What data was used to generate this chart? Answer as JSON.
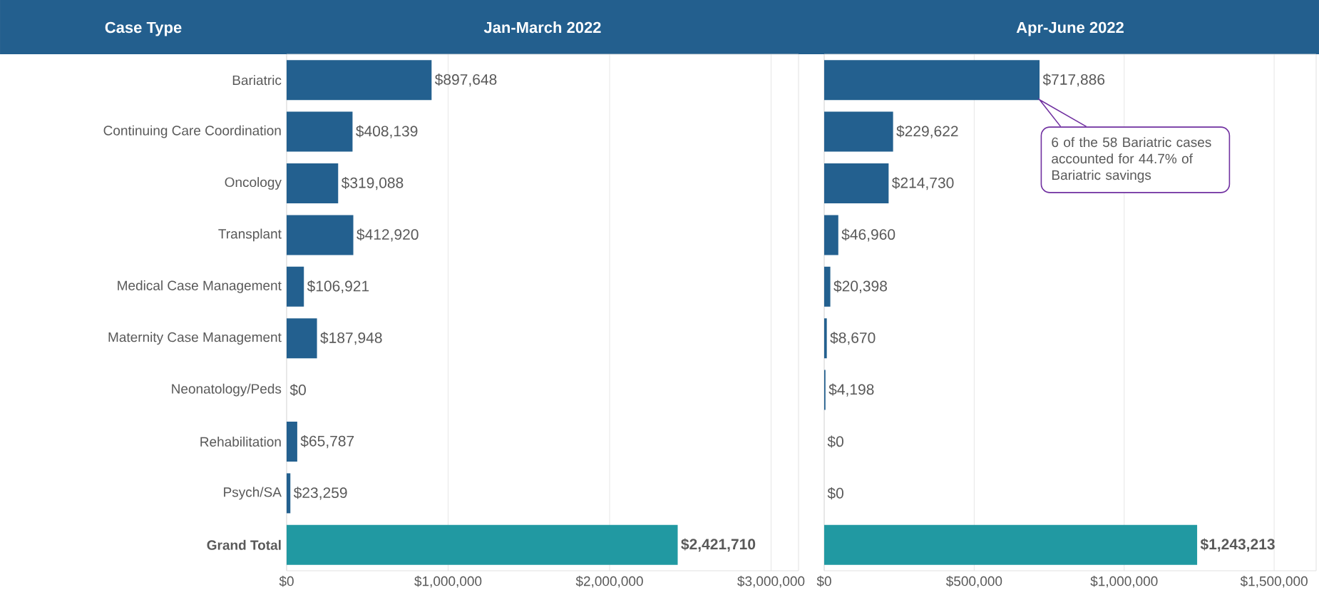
{
  "chart_data": [
    {
      "type": "bar",
      "orientation": "horizontal",
      "title": "Jan-March 2022",
      "ylabel": "Case Type",
      "categories": [
        "Bariatric",
        "Continuing Care Coordination",
        "Oncology",
        "Transplant",
        "Medical Case Management",
        "Maternity Case Management",
        "Neonatology/Peds",
        "Rehabilitation",
        "Psych/SA",
        "Grand Total"
      ],
      "values": [
        897648,
        408139,
        319088,
        412920,
        106921,
        187948,
        0,
        65787,
        23259,
        2421710
      ],
      "value_labels": [
        "$897,648",
        "$408,139",
        "$319,088",
        "$412,920",
        "$106,921",
        "$187,948",
        "$0",
        "$65,787",
        "$23,259",
        "$2,421,710"
      ],
      "colors": [
        "#23608f",
        "#23608f",
        "#23608f",
        "#23608f",
        "#23608f",
        "#23608f",
        "#23608f",
        "#23608f",
        "#23608f",
        "#2199a2"
      ],
      "xlim": [
        0,
        3170000
      ],
      "xticks": [
        {
          "value": 0,
          "label": "$0"
        },
        {
          "value": 1000000,
          "label": "$1,000,000"
        },
        {
          "value": 2000000,
          "label": "$2,000,000"
        },
        {
          "value": 3000000,
          "label": "$3,000,000"
        }
      ],
      "grid": "x"
    },
    {
      "type": "bar",
      "orientation": "horizontal",
      "title": "Apr-June 2022",
      "categories": [
        null,
        null,
        null,
        null,
        null,
        null,
        null,
        null,
        null,
        null
      ],
      "values": [
        717886,
        229622,
        214730,
        46960,
        20398,
        8670,
        4198,
        0,
        0,
        1243213
      ],
      "value_labels": [
        "$717,886",
        "$229,622",
        "$214,730",
        "$46,960",
        "$20,398",
        "$8,670",
        "$4,198",
        "$0",
        "$0",
        "$1,243,213"
      ],
      "colors": [
        "#23608f",
        "#23608f",
        "#23608f",
        "#23608f",
        "#23608f",
        "#23608f",
        "#23608f",
        "#23608f",
        "#23608f",
        "#2199a2"
      ],
      "xlim": [
        0,
        1640000
      ],
      "xticks": [
        {
          "value": 0,
          "label": "$0"
        },
        {
          "value": 500000,
          "label": "$500,000"
        },
        {
          "value": 1000000,
          "label": "$1,000,000"
        },
        {
          "value": 1500000,
          "label": "$1,500,000"
        }
      ],
      "tick_labels": "x",
      "grid": "x",
      "annotations": [
        "6 of the 58 Bariatric cases accounted for 44.7% of Bariatric savings"
      ]
    }
  ]
}
